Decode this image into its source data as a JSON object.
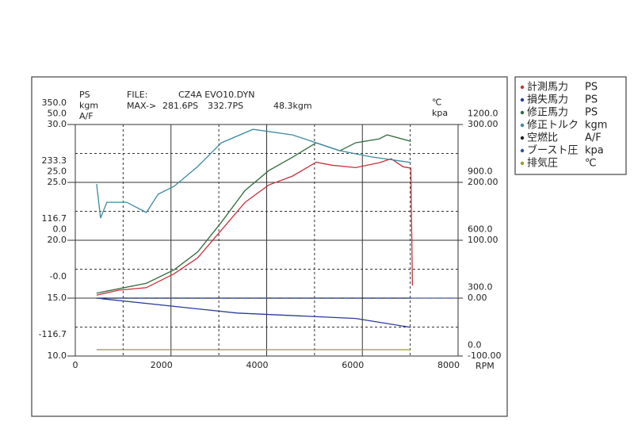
{
  "chart_data": {
    "type": "line",
    "file_label": "FILE:",
    "file_name": "CZ4A EVO10.DYN",
    "max_label": "MAX->",
    "max_values": [
      {
        "text": "281.6PS",
        "color": "#c8303a"
      },
      {
        "text": "332.7PS",
        "color": "#2e6b3a"
      },
      {
        "text": "48.3kgm",
        "color": "#3a8aa0"
      }
    ],
    "x_label": "RPM",
    "xlim": [
      0,
      8000
    ],
    "xticks": [
      0,
      2000,
      4000,
      6000,
      8000
    ],
    "axes": [
      {
        "name": "PS",
        "side": "left",
        "color": "#c8303a",
        "ylim": [
          -116.7,
          350
        ],
        "yticks": [
          {
            "value": 350,
            "label": "350.0"
          },
          {
            "value": 233.3,
            "label": "233.3"
          },
          {
            "value": 116.7,
            "label": "116.7"
          },
          {
            "value": 0,
            "label": "-0.0"
          },
          {
            "value": -116.7,
            "label": "-116.7"
          }
        ]
      },
      {
        "name": "kgm",
        "side": "left",
        "color": "#3a8aa0",
        "ylim": [
          -50,
          50
        ],
        "yticks": [
          {
            "value": 50,
            "label": "50.0"
          },
          {
            "value": 25,
            "label": "25.0"
          },
          {
            "value": 0,
            "label": "0.0"
          }
        ]
      },
      {
        "name": "A/F",
        "side": "left",
        "color": "#222222",
        "ylim": [
          10,
          30
        ],
        "yticks": [
          {
            "value": 30,
            "label": "30.0"
          },
          {
            "value": 25,
            "label": "25.0"
          },
          {
            "value": 20,
            "label": "20.0"
          },
          {
            "value": 15,
            "label": "15.0"
          },
          {
            "value": 10,
            "label": "10.0"
          }
        ]
      },
      {
        "name": "℃",
        "side": "right",
        "color": "#9a9a2a",
        "ylim": [
          0,
          1200
        ],
        "yticks": [
          {
            "value": 1200,
            "label": "1200.0"
          },
          {
            "value": 900,
            "label": "900.0"
          },
          {
            "value": 600,
            "label": "600.0"
          },
          {
            "value": 300,
            "label": "300.0"
          },
          {
            "value": 0,
            "label": "0.0"
          }
        ]
      },
      {
        "name": "kpa",
        "side": "right",
        "color": "#222222",
        "ylim": [
          -100,
          300
        ],
        "yticks": [
          {
            "value": 300,
            "label": "300.00"
          },
          {
            "value": 200,
            "label": "200.00"
          },
          {
            "value": 100,
            "label": "100.00"
          },
          {
            "value": 0,
            "label": "0.00"
          },
          {
            "value": -100,
            "label": "-100.00"
          }
        ]
      }
    ],
    "series": [
      {
        "name": "計測馬力",
        "unit": "PS",
        "axis": "PS",
        "color": "#c8303a",
        "x": [
          445,
          908,
          1485,
          2063,
          2558,
          3053,
          3548,
          4043,
          4538,
          5033,
          5363,
          5858,
          6353,
          6600,
          6848,
          7013,
          7046
        ],
        "values": [
          6,
          16,
          21,
          49,
          81,
          137,
          193,
          228,
          246,
          274,
          268,
          263,
          273,
          281,
          265,
          262,
          25
        ]
      },
      {
        "name": "損失馬力",
        "unit": "PS",
        "axis": "PS",
        "color": "#2a3a9a",
        "x": [
          445,
          3383,
          5858,
          7013
        ],
        "values": [
          0,
          -30,
          -41,
          -59
        ]
      },
      {
        "name": "修正馬力",
        "unit": "PS",
        "axis": "PS",
        "color": "#2e6b3a",
        "x": [
          445,
          1485,
          2063,
          2558,
          3053,
          3548,
          4043,
          4538,
          5033,
          5528,
          5858,
          6353,
          6518,
          7013
        ],
        "values": [
          10,
          30,
          57,
          93,
          153,
          217,
          257,
          284,
          313,
          297,
          313,
          321,
          329,
          316
        ]
      },
      {
        "name": "修正トルク",
        "unit": "kgm",
        "axis": "kgm",
        "color": "#3a8aa0",
        "x": [
          445,
          528,
          660,
          1073,
          1485,
          1733,
          2063,
          2558,
          3053,
          3713,
          4538,
          5033,
          5528,
          6188,
          7013
        ],
        "values": [
          24.3,
          9.6,
          16.4,
          16.4,
          12,
          19.9,
          23.3,
          31.8,
          42.1,
          47.9,
          45.5,
          42.1,
          38.7,
          36,
          33.6
        ]
      },
      {
        "name": "空燃比",
        "unit": "A/F",
        "axis": "A/F",
        "color": "#222222",
        "x": [
          445,
          7013
        ],
        "values": [
          15,
          15
        ]
      },
      {
        "name": "ブースト圧",
        "unit": "kpa",
        "axis": "kpa",
        "color": "#3050b0",
        "dashed": true,
        "x": [
          445,
          8000
        ],
        "values": [
          0,
          0
        ]
      },
      {
        "name": "排気圧",
        "unit": "℃",
        "axis": "℃",
        "color": "#9a9a2a",
        "x": [
          445,
          7013
        ],
        "values": [
          33,
          33
        ]
      }
    ]
  }
}
